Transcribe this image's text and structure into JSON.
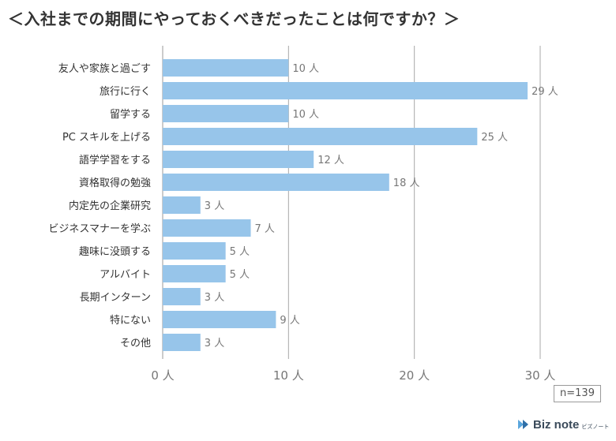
{
  "chart_data": {
    "type": "bar",
    "orientation": "horizontal",
    "title": "＜入社までの期間にやっておくべきだったことは何ですか？＞",
    "categories": [
      "友人や家族と過ごす",
      "旅行に行く",
      "留学する",
      "PC スキルを上げる",
      "語学学習をする",
      "資格取得の勉強",
      "内定先の企業研究",
      "ビジネスマナーを学ぶ",
      "趣味に没頭する",
      "アルバイト",
      "長期インターン",
      "特にない",
      "その他"
    ],
    "values": [
      10,
      29,
      10,
      25,
      12,
      18,
      3,
      7,
      5,
      5,
      3,
      9,
      3
    ],
    "value_labels": [
      "10 人",
      "29 人",
      "10 人",
      "25 人",
      "12 人",
      "18 人",
      "3 人",
      "7 人",
      "5 人",
      "5 人",
      "3 人",
      "9 人",
      "3 人"
    ],
    "xlim": [
      0,
      30
    ],
    "x_ticks": [
      0,
      10,
      20,
      30
    ],
    "x_tick_labels": [
      "0 人",
      "10 人",
      "20 人",
      "30 人"
    ],
    "grid": true,
    "bar_color": "#97c5ea",
    "note": "n=139"
  },
  "logo": {
    "text": "Biz note",
    "sub": "ビズノート"
  }
}
